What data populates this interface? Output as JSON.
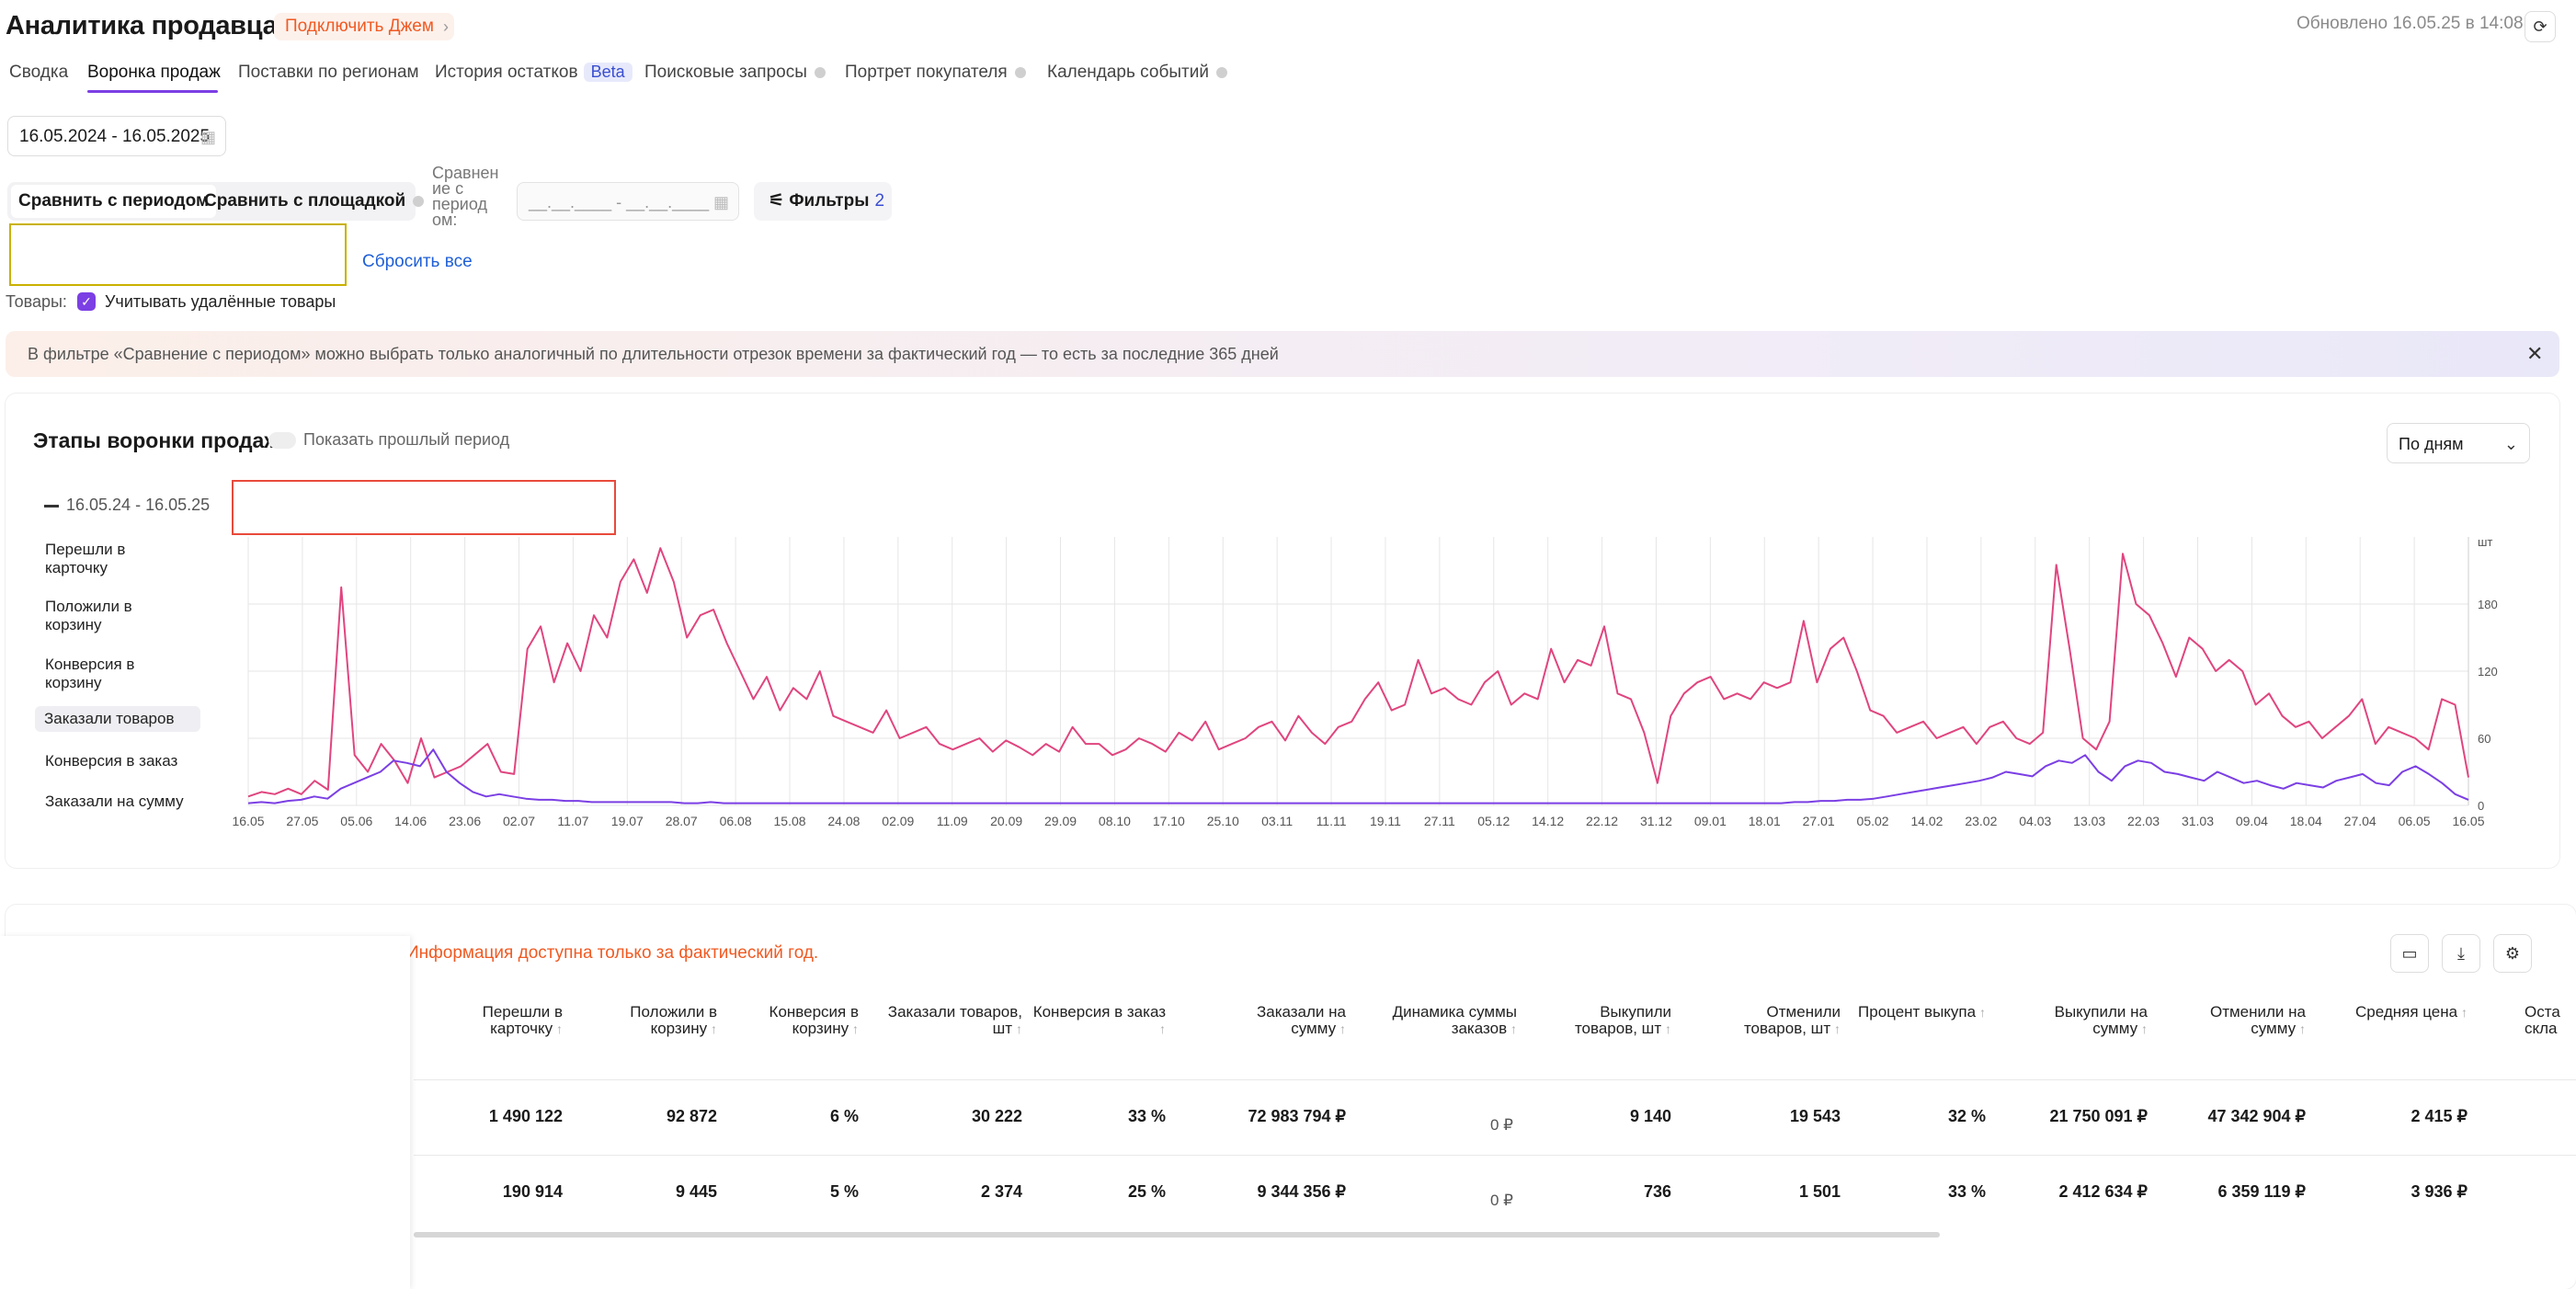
{
  "header": {
    "title": "Аналитика продавца",
    "jem": "Подключить Джем",
    "updated": "Обновлено 16.05.25 в 14:08"
  },
  "tabs": [
    {
      "label": "Сводка"
    },
    {
      "label": "Воронка продаж"
    },
    {
      "label": "Поставки по регионам"
    },
    {
      "label": "История остатков",
      "badge": "Beta"
    },
    {
      "label": "Поисковые запросы"
    },
    {
      "label": "Портрет покупателя"
    },
    {
      "label": "Календарь событий"
    }
  ],
  "filters": {
    "date_range": "16.05.2024 - 16.05.2025",
    "compare_period": "Сравнить с периодом",
    "compare_platform": "Сравнить с площадкой",
    "compare_label": "Сравнен ие с период ом:",
    "compare_range_placeholder": "__.__.____ - __.__.____",
    "filters_label": "Фильтры",
    "filters_count": "2",
    "reset": "Сбросить все",
    "goods_label": "Товары:",
    "deleted_label": "Учитывать удалённые товары"
  },
  "alert": "В фильтре «Сравнение с периодом» можно выбрать только аналогичный по длительности отрезок времени за фактический год — то есть за последние 365 дней",
  "chart_panel": {
    "title": "Этапы воронки продаж",
    "toggle_label": "Показать прошлый период",
    "granularity": "По дням",
    "legend": "16.05.24 - 16.05.25",
    "metrics": [
      "Перешли в карточку",
      "Положили в корзину",
      "Конверсия в корзину",
      "Заказали товаров",
      "Конверсия в заказ",
      "Заказали на сумму"
    ]
  },
  "chart_data": {
    "type": "line",
    "y_unit": "шт",
    "ylim": [
      0,
      240
    ],
    "yticks": [
      0,
      60,
      120,
      180
    ],
    "x_labels": [
      "16.05",
      "27.05",
      "05.06",
      "14.06",
      "23.06",
      "02.07",
      "11.07",
      "19.07",
      "28.07",
      "06.08",
      "15.08",
      "24.08",
      "02.09",
      "11.09",
      "20.09",
      "29.09",
      "08.10",
      "17.10",
      "25.10",
      "03.11",
      "11.11",
      "19.11",
      "27.11",
      "05.12",
      "14.12",
      "22.12",
      "31.12",
      "09.01",
      "18.01",
      "27.01",
      "05.02",
      "14.02",
      "23.02",
      "04.03",
      "13.03",
      "22.03",
      "31.03",
      "09.04",
      "18.04",
      "27.04",
      "06.05",
      "16.05"
    ],
    "colors": {
      "orders": "#e0457f",
      "secondary": "#7b3fe4"
    },
    "series": [
      {
        "values": [
          8,
          12,
          10,
          15,
          10,
          22,
          14,
          195,
          45,
          30,
          55,
          40,
          20,
          60,
          25,
          30,
          35,
          45,
          55,
          30,
          28,
          140,
          160,
          110,
          145,
          120,
          170,
          150,
          200,
          220,
          190,
          230,
          200,
          150,
          170,
          175,
          145,
          120,
          95,
          115,
          85,
          105,
          95,
          120,
          80,
          75,
          70,
          65,
          85,
          60,
          65,
          70,
          55,
          50,
          55,
          60,
          48,
          58,
          52,
          45,
          55,
          48,
          70,
          55,
          55,
          45,
          50,
          60,
          55,
          48,
          65,
          58,
          75,
          50,
          55,
          60,
          70,
          75,
          58,
          80,
          65,
          55,
          70,
          75,
          95,
          110,
          85,
          90,
          130,
          100,
          105,
          95,
          90,
          110,
          120,
          90,
          100,
          95,
          140,
          110,
          130,
          125,
          160,
          100,
          95,
          65,
          20,
          80,
          100,
          110,
          115,
          95,
          100,
          95,
          110,
          105,
          110,
          165,
          110,
          140,
          150,
          120,
          85,
          80,
          65,
          70,
          75,
          60,
          65,
          70,
          55,
          70,
          75,
          60,
          55,
          65,
          215,
          140,
          60,
          50,
          75,
          225,
          180,
          170,
          145,
          115,
          150,
          140,
          120,
          130,
          120,
          90,
          100,
          80,
          70,
          75,
          60,
          70,
          80,
          95,
          55,
          70,
          65,
          60,
          50,
          95,
          90,
          25
        ]
      },
      {
        "values": [
          2,
          3,
          2,
          4,
          5,
          8,
          6,
          15,
          20,
          25,
          30,
          40,
          38,
          35,
          50,
          30,
          20,
          12,
          8,
          10,
          8,
          6,
          5,
          5,
          4,
          4,
          3,
          3,
          3,
          3,
          3,
          3,
          3,
          2,
          2,
          3,
          2,
          2,
          2,
          2,
          2,
          2,
          2,
          2,
          2,
          2,
          2,
          2,
          2,
          2,
          2,
          2,
          2,
          2,
          2,
          2,
          2,
          2,
          2,
          2,
          2,
          2,
          2,
          2,
          2,
          2,
          2,
          2,
          2,
          2,
          2,
          2,
          2,
          2,
          2,
          2,
          2,
          2,
          2,
          2,
          2,
          2,
          2,
          2,
          2,
          2,
          2,
          2,
          2,
          2,
          2,
          2,
          2,
          2,
          2,
          2,
          2,
          2,
          2,
          2,
          2,
          2,
          2,
          2,
          2,
          2,
          2,
          2,
          2,
          2,
          2,
          2,
          2,
          2,
          2,
          2,
          2,
          3,
          3,
          4,
          4,
          5,
          5,
          6,
          8,
          10,
          12,
          14,
          16,
          18,
          20,
          22,
          25,
          30,
          28,
          26,
          35,
          40,
          38,
          45,
          30,
          22,
          35,
          40,
          38,
          30,
          28,
          25,
          22,
          30,
          25,
          20,
          22,
          18,
          15,
          20,
          18,
          16,
          22,
          25,
          28,
          20,
          18,
          30,
          35,
          28,
          20,
          10,
          5
        ]
      }
    ]
  },
  "table": {
    "info": "Информация доступна только за фактический год.",
    "headers": [
      "Перешли в карточку",
      "Положили в корзину",
      "Конверсия в корзину",
      "Заказали товаров, шт",
      "Конверсия в заказ",
      "Заказали на сумму",
      "Динамика суммы заказов",
      "Выкупили товаров, шт",
      "Отменили товаров, шт",
      "Процент выкупа",
      "Выкупили на сумму",
      "Отменили на сумму",
      "Средняя цена",
      "Оста скла"
    ],
    "rows": [
      [
        "1 490 122",
        "92 872",
        "6 %",
        "30 222",
        "33 %",
        "72 983 794 ₽",
        "0 ₽",
        "9 140",
        "19 543",
        "32 %",
        "21 750 091 ₽",
        "47 342 904 ₽",
        "2 415 ₽"
      ],
      [
        "190 914",
        "9 445",
        "5 %",
        "2 374",
        "25 %",
        "9 344 356 ₽",
        "0 ₽",
        "736",
        "1 501",
        "33 %",
        "2 412 634 ₽",
        "6 359 119 ₽",
        "3 936 ₽"
      ]
    ]
  }
}
